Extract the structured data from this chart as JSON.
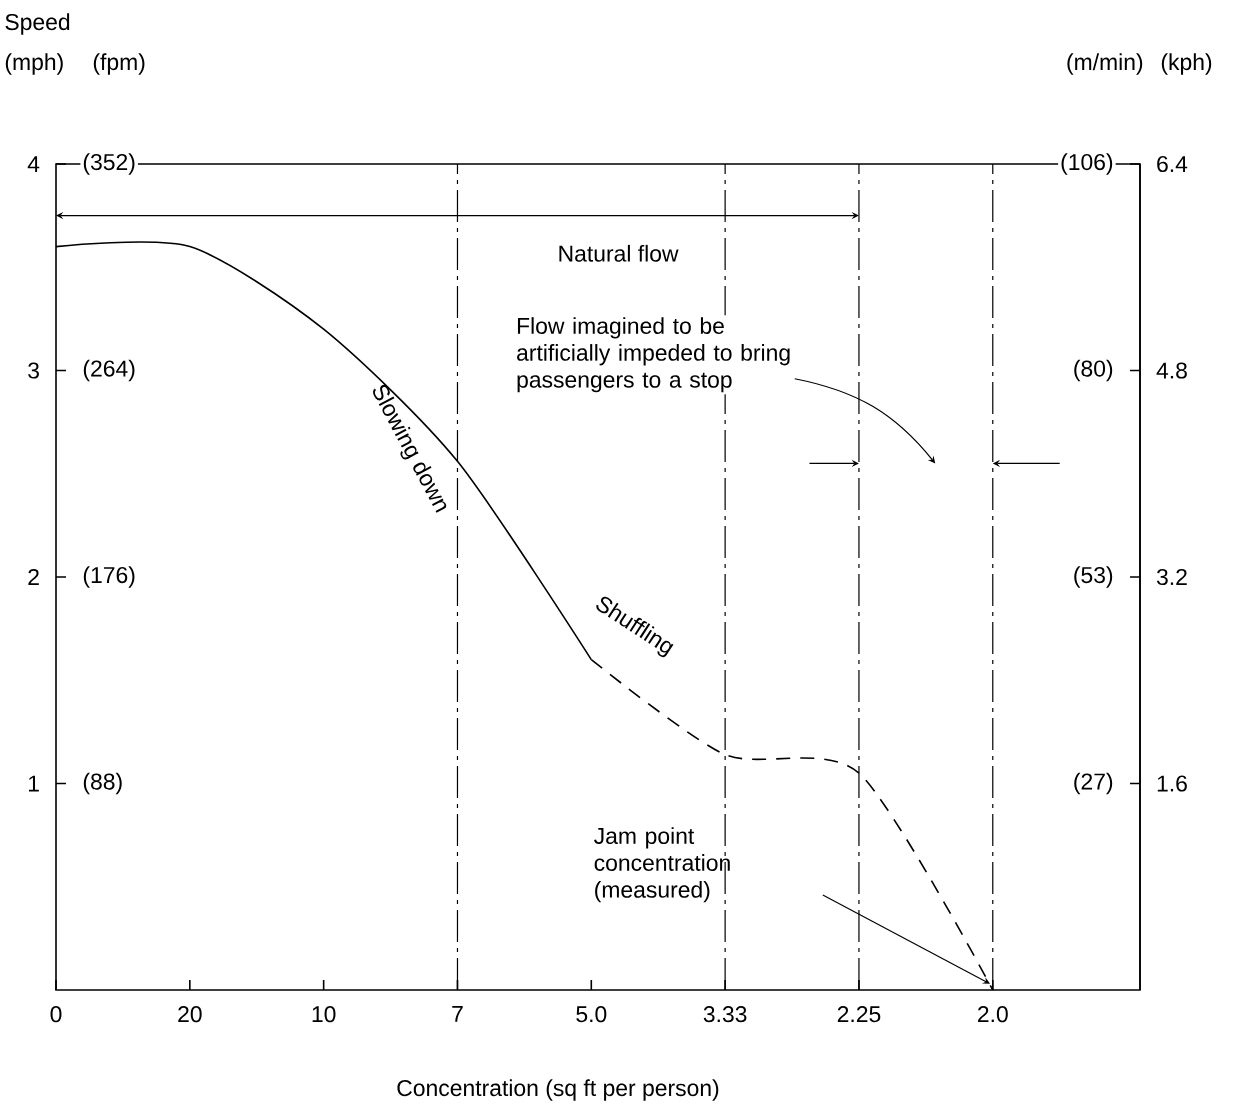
{
  "chart_data": {
    "type": "line",
    "title": "Speed",
    "ylabel": "(mph)",
    "y3label": "(fpm)",
    "y2label": "(kph)",
    "xlabel": "Concentration (sq ft per person)",
    "categories": [
      "0",
      "20",
      "10",
      "7",
      "5.0",
      "3.33",
      "2.25",
      "2.0"
    ],
    "ylim": [
      0,
      4
    ],
    "yticks": [
      1,
      2,
      3,
      4
    ],
    "y2lim": [
      0,
      6.4
    ],
    "y2ticks": [
      1.6,
      3.2,
      4.8,
      6.4
    ],
    "y3lim": [
      0,
      352
    ],
    "y3ticks": [
      {
        "value": 88,
        "label": "(88)"
      },
      {
        "value": 176,
        "label": "(176)"
      },
      {
        "value": 264,
        "label": "(264)"
      },
      {
        "value": 352,
        "label": "(352)"
      }
    ],
    "series": [
      {
        "color": "#000000",
        "line_style": "solid",
        "values": [
          3.6,
          3.6,
          3.2,
          2.56,
          1.6,
          null,
          null,
          null
        ]
      },
      {
        "color": "#000000",
        "line_style": "dashed",
        "values": [
          null,
          null,
          null,
          null,
          1.6,
          1.14,
          1.05,
          0
        ]
      }
    ],
    "ref_lines": [
      {
        "axis": "x",
        "value": "7",
        "line_style": "dashdot"
      },
      {
        "axis": "x",
        "value": "3.33",
        "line_style": "dashdot"
      },
      {
        "axis": "x",
        "value": "2.25",
        "line_style": "dashdot"
      },
      {
        "axis": "x",
        "value": "2.0",
        "line_style": "dashdot"
      }
    ],
    "annotations": [
      "Natural flow",
      "Flow imagined to be artificially impeded to bring passengers to a stop",
      "Slowing down",
      "Shuffling",
      "Jam point concentration (measured)",
      "(m/min)",
      "(27)",
      "(53)",
      "(80)",
      "(106)"
    ]
  }
}
